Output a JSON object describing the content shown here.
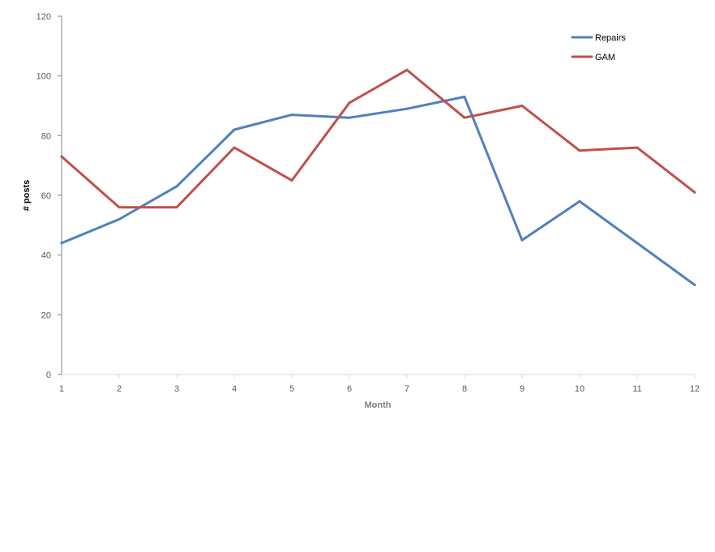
{
  "chart_data": {
    "type": "line",
    "title": "",
    "xlabel": "Month",
    "ylabel": "# posts",
    "x": [
      1,
      2,
      3,
      4,
      5,
      6,
      7,
      8,
      9,
      10,
      11,
      12
    ],
    "x_tick_labels": [
      "1",
      "2",
      "3",
      "4",
      "5",
      "6",
      "7",
      "8",
      "9",
      "10",
      "11",
      "12"
    ],
    "ylim": [
      0,
      120
    ],
    "y_ticks": [
      0,
      20,
      40,
      60,
      80,
      100,
      120
    ],
    "grid": false,
    "legend_position": "top-right",
    "series": [
      {
        "name": "Repairs",
        "color": "#4f81bd",
        "values": [
          44,
          52,
          63,
          82,
          87,
          86,
          89,
          93,
          45,
          58,
          44,
          30
        ]
      },
      {
        "name": "GAM",
        "color": "#c0504d",
        "values": [
          73,
          56,
          56,
          76,
          65,
          91,
          102,
          86,
          90,
          75,
          76,
          61
        ]
      }
    ]
  }
}
